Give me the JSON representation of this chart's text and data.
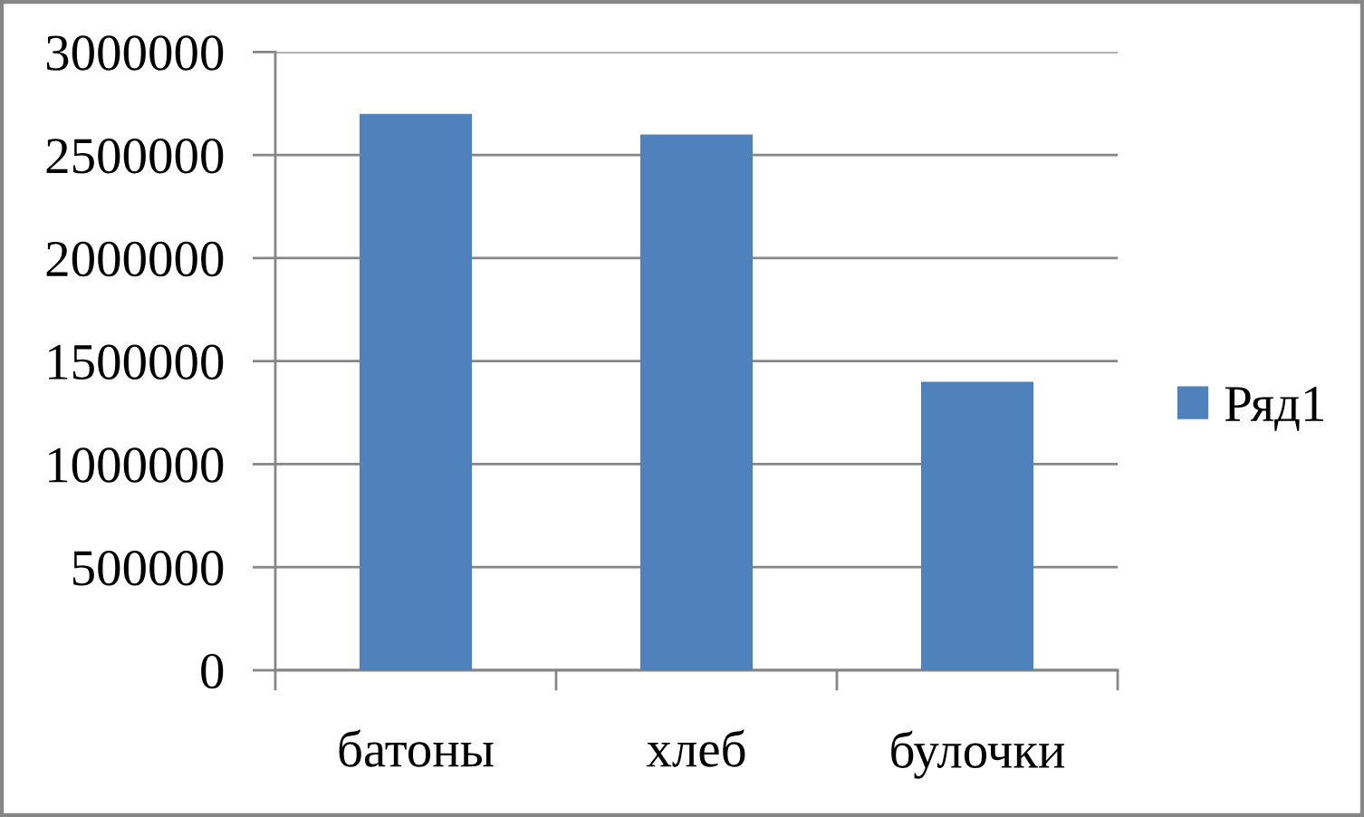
{
  "chart_data": {
    "type": "bar",
    "categories": [
      "батоны",
      "хлеб",
      "булочки"
    ],
    "series": [
      {
        "name": "Ряд1",
        "color": "#4f81bd",
        "values": [
          2700000,
          2600000,
          1400000
        ]
      }
    ],
    "ylim": [
      0,
      3000000
    ],
    "yticks": [
      0,
      500000,
      1000000,
      1500000,
      2000000,
      2500000,
      3000000
    ],
    "grid": "y",
    "legend": "right"
  }
}
